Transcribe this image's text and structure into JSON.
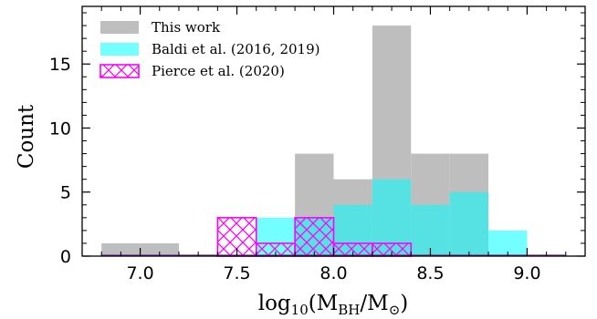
{
  "chart_data": {
    "type": "bar",
    "title": "",
    "xlabel": "log10(MBH/M⊙)",
    "xlabel_parts": {
      "log": "log",
      "sub10": "10",
      "open": "(M",
      "subBH": "BH",
      "slash": "/M",
      "sun": "⊙",
      "close": ")"
    },
    "ylabel": "Count",
    "xlim": [
      6.7,
      9.3
    ],
    "ylim": [
      0,
      19.5
    ],
    "xticks": [
      7.0,
      7.5,
      8.0,
      8.5,
      9.0
    ],
    "xtick_labels": [
      "7.0",
      "7.5",
      "8.0",
      "8.5",
      "9.0"
    ],
    "yticks": [
      0,
      5,
      10,
      15
    ],
    "ytick_labels": [
      "0",
      "5",
      "10",
      "15"
    ],
    "bin_edges": [
      6.8,
      7.0,
      7.2,
      7.4,
      7.6,
      7.8,
      8.0,
      8.2,
      8.4,
      8.6,
      8.8,
      9.0,
      9.2
    ],
    "legend_position": "top-left",
    "series": [
      {
        "name": "This work",
        "style": "filled",
        "color": "#bebebe",
        "values": [
          1,
          1,
          0,
          0,
          0,
          8,
          6,
          18,
          8,
          8,
          0,
          0
        ]
      },
      {
        "name": "Baldi et al. (2016, 2019)",
        "style": "filled",
        "color": "#00ffff",
        "values": [
          0,
          0,
          0,
          0,
          3,
          3,
          4,
          6,
          4,
          5,
          2,
          0
        ]
      },
      {
        "name": "Pierce et al. (2020)",
        "style": "hatched",
        "color": "#ff00ff",
        "values": [
          0,
          0,
          0,
          3,
          1,
          3,
          1,
          1,
          0,
          0,
          0,
          0
        ]
      }
    ]
  }
}
